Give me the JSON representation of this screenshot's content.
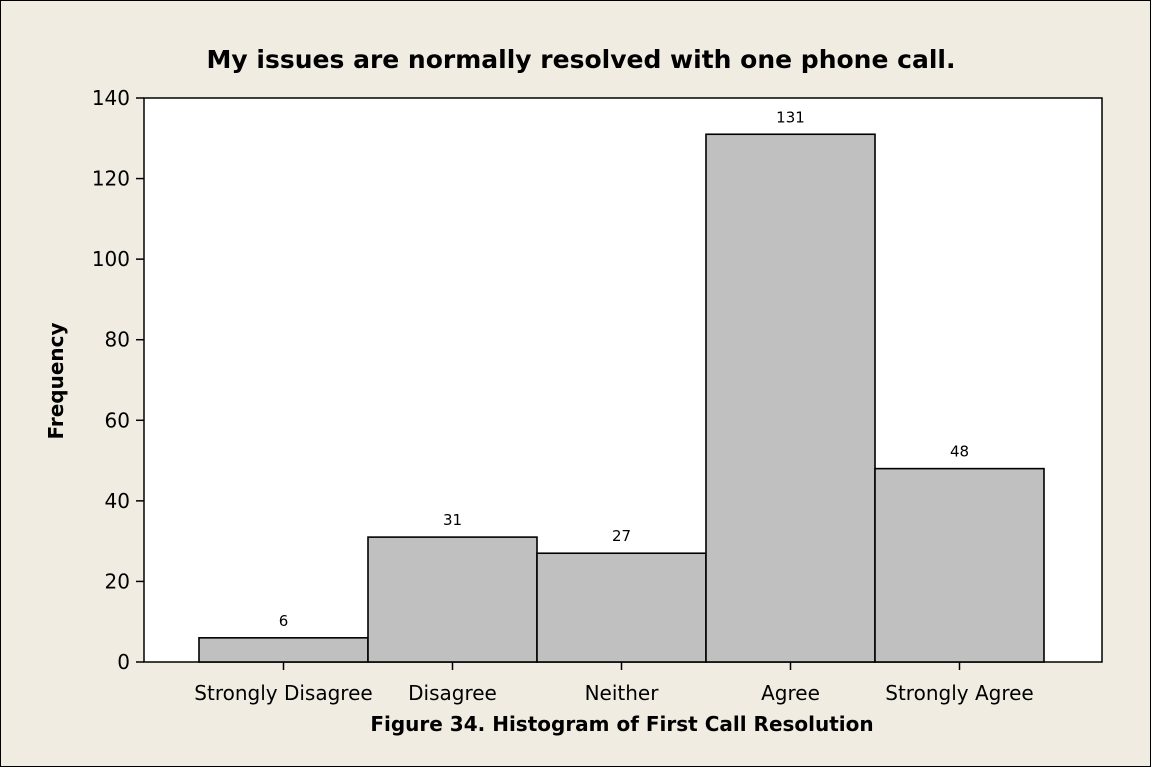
{
  "chart_data": {
    "type": "bar",
    "title": "My issues are normally resolved with one phone call.",
    "xlabel": "Figure 34.  Histogram of First Call Resolution",
    "ylabel": "Frequency",
    "categories": [
      "Strongly Disagree",
      "Disagree",
      "Neither",
      "Agree",
      "Strongly Agree"
    ],
    "values": [
      6,
      31,
      27,
      131,
      48
    ],
    "ylim": [
      0,
      140
    ],
    "yticks": [
      "0",
      "20",
      "40",
      "60",
      "80",
      "100",
      "120",
      "140"
    ],
    "grid": false,
    "colors": {
      "bar_fill": "#c0c0c0",
      "background": "#f0ece2",
      "plot_background": "#ffffff"
    }
  }
}
